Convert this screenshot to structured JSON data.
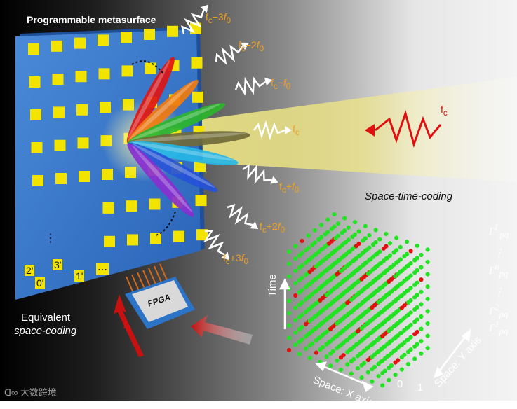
{
  "texts": {
    "title": "Programmable metasurface",
    "equivalent_line1": "Equivalent",
    "equivalent_line2": "space-coding",
    "stc_title": "Space-time-coding",
    "fpga": "FPGA",
    "f0": "f",
    "f0_sub": "0",
    "time": "Time",
    "x_axis": "Space: X axis",
    "y_axis": "Space: Y axis",
    "zero": "0",
    "one": "1",
    "watermark": "大数跨境"
  },
  "freq_labels": [
    {
      "pre": "f",
      "sub": "c",
      "op": "−3",
      "post": "f",
      "sub2": "0"
    },
    {
      "pre": "f",
      "sub": "c",
      "op": "−2",
      "post": "f",
      "sub2": "0"
    },
    {
      "pre": "f",
      "sub": "c",
      "op": "−",
      "post": "f",
      "sub2": "0"
    },
    {
      "pre": "f",
      "sub": "c",
      "op": "",
      "post": "",
      "sub2": ""
    },
    {
      "pre": "f",
      "sub": "c",
      "op": "+",
      "post": "f",
      "sub2": "0"
    },
    {
      "pre": "f",
      "sub": "c",
      "op": "+2",
      "post": "f",
      "sub2": "0"
    },
    {
      "pre": "f",
      "sub": "c",
      "op": "+3",
      "post": "f",
      "sub2": "0"
    }
  ],
  "incident_label": {
    "pre": "f",
    "sub": "c"
  },
  "cell_codes": [
    "0'",
    "1'",
    "2'",
    "3'",
    "⋯",
    "⋮"
  ],
  "gammas": [
    {
      "base": "Γ",
      "sub": "pq",
      "sup": "L"
    },
    {
      "base": "⋮",
      "sub": "",
      "sup": ""
    },
    {
      "base": "Γ",
      "sub": "pq",
      "sup": "n"
    },
    {
      "base": "⋮",
      "sub": "",
      "sup": ""
    },
    {
      "base": "Γ",
      "sub": "pq",
      "sup": "2"
    },
    {
      "base": "Γ",
      "sub": "pq",
      "sup": "1"
    }
  ],
  "colors": {
    "lobes": [
      "#e01515",
      "#f07a10",
      "#2bb52b",
      "#6f6a3a",
      "#26b6e6",
      "#2553d8",
      "#8a2fd0"
    ],
    "accent_orange": "#f2a11c",
    "dot_green": "#22e322",
    "dot_red": "#e21010",
    "cell_yellow": "#f3e400"
  }
}
